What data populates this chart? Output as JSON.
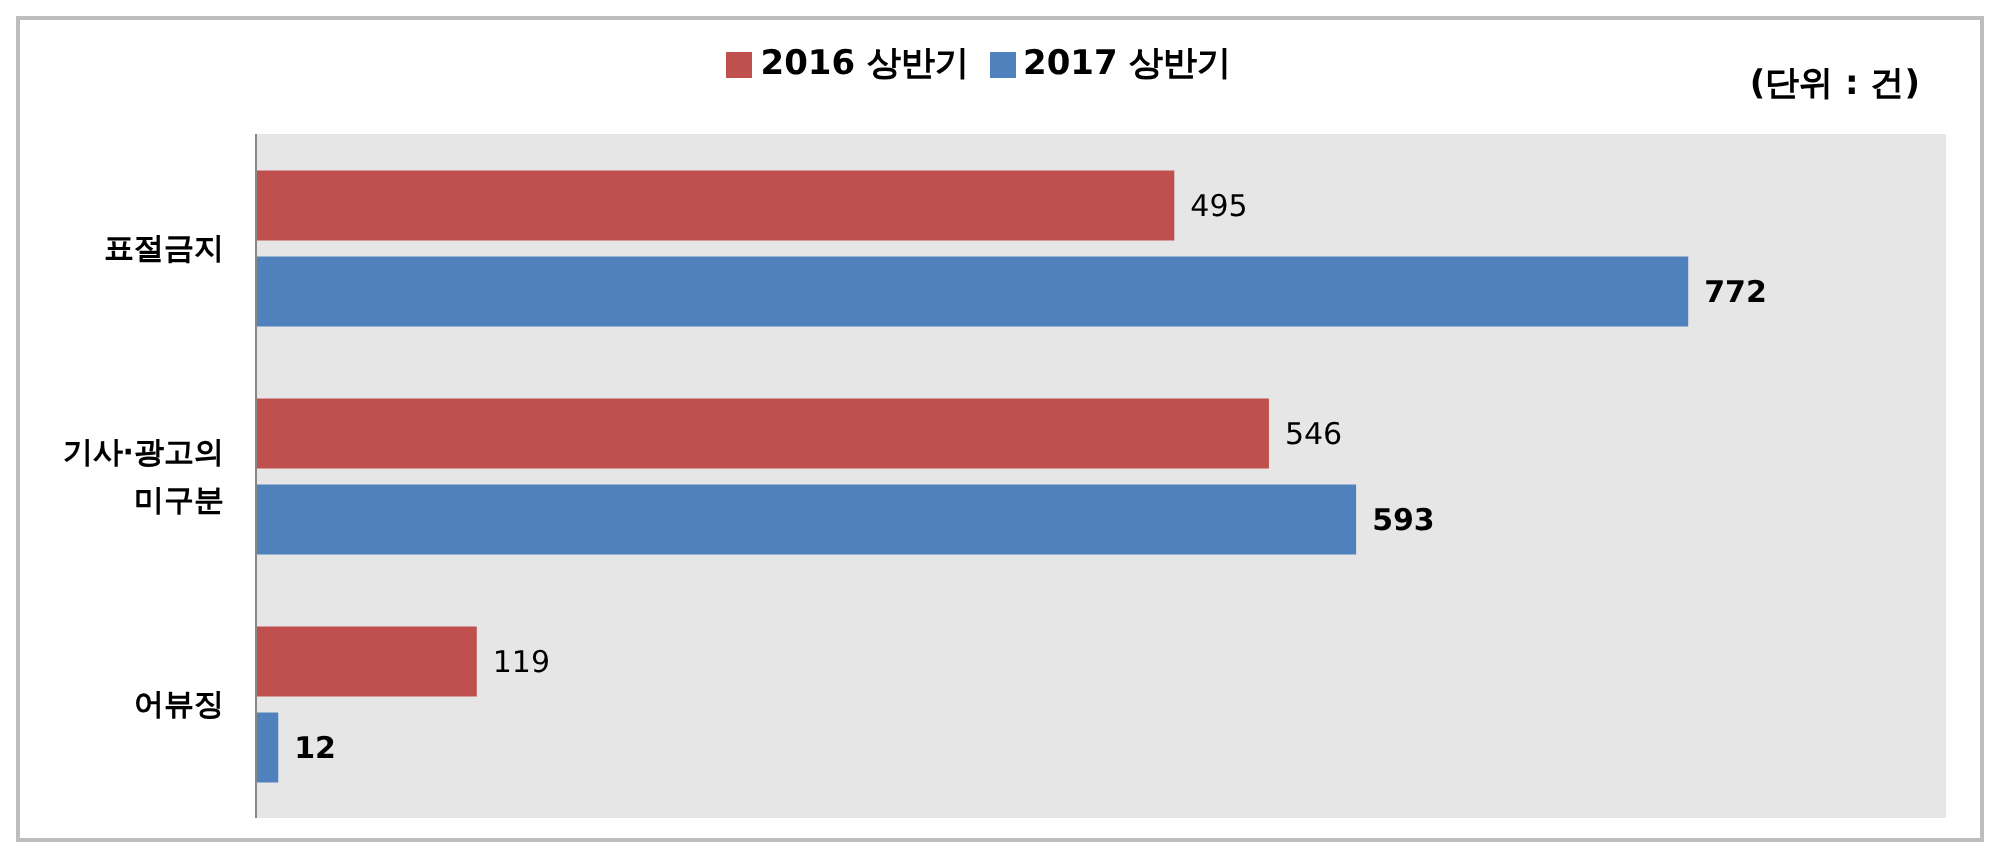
{
  "chart_data": {
    "type": "bar",
    "orientation": "horizontal",
    "categories": [
      "표절금지",
      "기사·광고의 미구분",
      "어뷰징"
    ],
    "series": [
      {
        "name": "2016 상반기",
        "color": "#c0504d",
        "values": [
          495,
          546,
          119
        ]
      },
      {
        "name": "2017 상반기",
        "color": "#4f81bd",
        "values": [
          772,
          593,
          12
        ]
      }
    ],
    "data_labels": true,
    "legend": "top",
    "grid": false,
    "annotations": [
      "(단위 : 건)"
    ]
  }
}
